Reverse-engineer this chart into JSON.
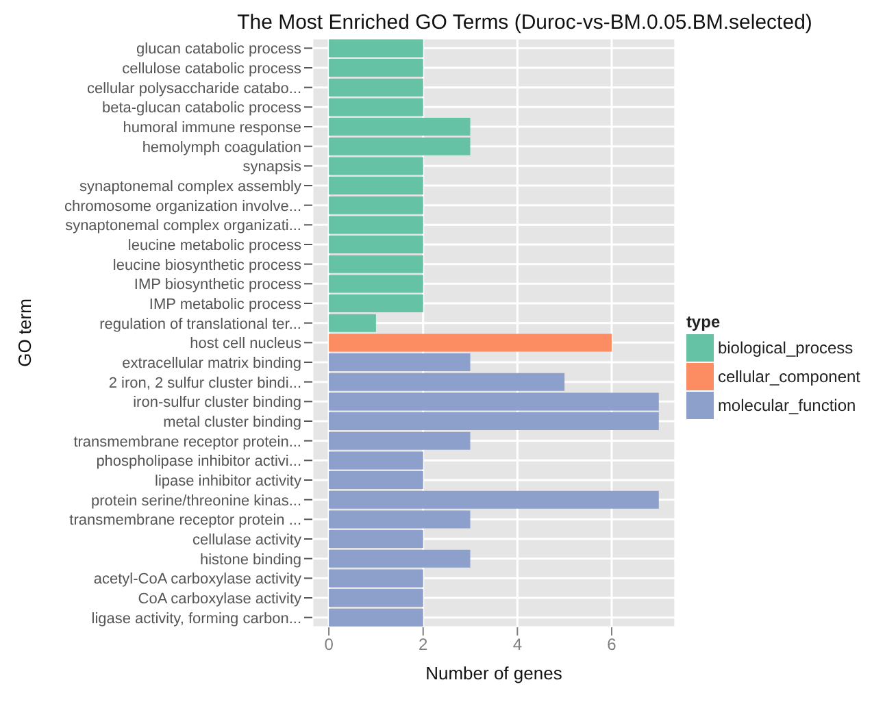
{
  "chart_data": {
    "type": "bar",
    "orientation": "horizontal",
    "stacked": true,
    "title": "The Most Enriched GO Terms (Duroc-vs-BM.0.05.BM.selected)",
    "xlabel": "Number of genes",
    "ylabel": "GO term",
    "legend_title": "type",
    "legend": "right",
    "grid": true,
    "categories": [
      "glucan catabolic process",
      "cellulose catabolic process",
      "cellular polysaccharide catabo...",
      "beta-glucan catabolic process",
      "humoral immune response",
      "hemolymph coagulation",
      "synapsis",
      "synaptonemal complex assembly",
      "chromosome organization involve...",
      "synaptonemal complex organizati...",
      "leucine metabolic process",
      "leucine biosynthetic process",
      "IMP biosynthetic process",
      "IMP metabolic process",
      "regulation of translational ter...",
      "host cell nucleus",
      "extracellular matrix binding",
      "2 iron, 2 sulfur cluster bindi...",
      "iron-sulfur cluster binding",
      "metal cluster binding",
      "transmembrane receptor protein...",
      "phospholipase inhibitor activi...",
      "lipase inhibitor activity",
      "protein serine/threonine kinas...",
      "transmembrane receptor protein ...",
      "cellulase activity",
      "histone binding",
      "acetyl-CoA carboxylase activity",
      "CoA carboxylase activity",
      "ligase activity, forming carbon..."
    ],
    "series": [
      {
        "name": "biological_process",
        "color": "#66c2a5",
        "values": [
          2,
          2,
          2,
          2,
          3,
          3,
          2,
          2,
          2,
          2,
          2,
          2,
          2,
          2,
          1,
          null,
          null,
          null,
          null,
          null,
          null,
          null,
          null,
          null,
          null,
          null,
          null,
          null,
          null,
          null
        ]
      },
      {
        "name": "cellular_component",
        "color": "#fc8d62",
        "values": [
          null,
          null,
          null,
          null,
          null,
          null,
          null,
          null,
          null,
          null,
          null,
          null,
          null,
          null,
          null,
          6,
          null,
          null,
          null,
          null,
          null,
          null,
          null,
          null,
          null,
          null,
          null,
          null,
          null,
          null
        ]
      },
      {
        "name": "molecular_function",
        "color": "#8da0cb",
        "values": [
          null,
          null,
          null,
          null,
          null,
          null,
          null,
          null,
          null,
          null,
          null,
          null,
          null,
          null,
          null,
          null,
          3,
          5,
          7,
          7,
          3,
          2,
          2,
          7,
          3,
          2,
          3,
          2,
          2,
          2
        ]
      }
    ],
    "xlim": [
      -0.35,
      7.35
    ],
    "xticks": [
      0,
      2,
      4,
      6
    ]
  }
}
